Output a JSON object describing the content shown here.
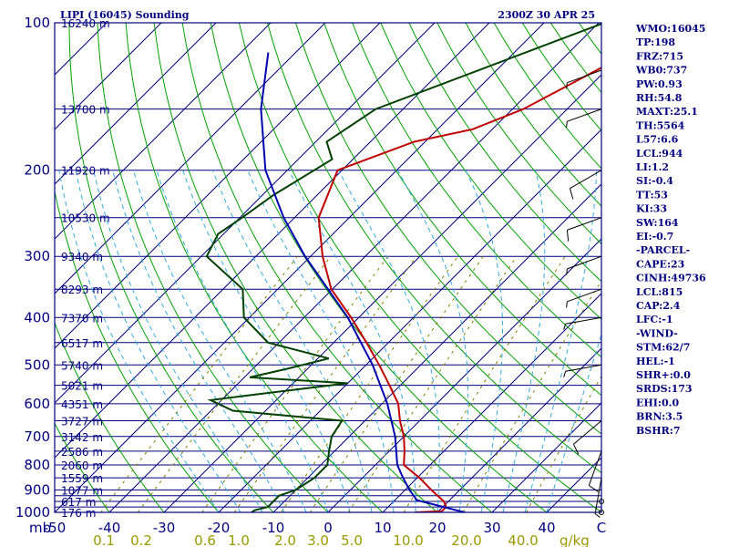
{
  "header": {
    "title": "LIPI (16045) Sounding",
    "datetime": "2300Z 30 APR 25"
  },
  "indices": [
    "WMO:16045",
    "TP:198",
    "FRZ:715",
    "WB0:737",
    "PW:0.93",
    "RH:54.8",
    "MAXT:25.1",
    "TH:5564",
    "L57:6.6",
    "LCL:944",
    "LI:1.2",
    "SI:-0.4",
    "TT:53",
    "KI:33",
    "SW:164",
    "EI:-0.7",
    "-PARCEL-",
    "CAPE:23",
    "CINH:49736",
    "LCL:815",
    "CAP:2.4",
    "LFC:-1",
    "-WIND-",
    "STM:62/7",
    "HEL:-1",
    "SHR+:0.0",
    "SRDS:173",
    "EHI:0.0",
    "BRN:3.5",
    "BSHR:7"
  ],
  "colors": {
    "frame": "#000080",
    "isobar": "#000080",
    "isotherm": "#000080",
    "dry_adiabat": "#00a000",
    "moist_adiabat": "#33aadd",
    "mixing_ratio": "#808000",
    "temperature": "#c00000",
    "dewpoint": "#004000",
    "parcel": "#0000b0",
    "wind_barb": "#000000"
  },
  "chart_data": {
    "type": "line",
    "diagram": "skew-T log-p",
    "pressure_axis": {
      "unit_label": "mb",
      "range": [
        100,
        1000
      ],
      "scale": "log",
      "levels": [
        100,
        150,
        200,
        250,
        300,
        350,
        400,
        450,
        500,
        550,
        600,
        650,
        700,
        750,
        800,
        850,
        900,
        925,
        950,
        975,
        1000
      ],
      "tick_labels": [
        "100",
        "200",
        "300",
        "400",
        "500",
        "600",
        "700",
        "800",
        "900",
        "1000"
      ]
    },
    "temperature_axis": {
      "unit_label": "C",
      "range": [
        -50,
        50
      ],
      "tick_labels": [
        "-50",
        "-40",
        "-30",
        "-20",
        "-10",
        "0",
        "10",
        "20",
        "30",
        "40",
        "C"
      ]
    },
    "mixing_ratio_axis": {
      "unit_label": "g/kg",
      "values": [
        0.1,
        0.2,
        0.6,
        1.0,
        2.0,
        3.0,
        5.0,
        10.0,
        20.0,
        40.0
      ],
      "tick_labels": [
        "0.1",
        "0.2",
        "0.6",
        "1.0",
        "2.0",
        "3.0",
        "5.0",
        "10.0",
        "20.0",
        "40.0"
      ]
    },
    "height_labels": [
      {
        "p": 100,
        "label": "16240 m"
      },
      {
        "p": 150,
        "label": "13700 m"
      },
      {
        "p": 200,
        "label": "11920 m"
      },
      {
        "p": 250,
        "label": "10530 m"
      },
      {
        "p": 300,
        "label": "9340 m"
      },
      {
        "p": 350,
        "label": "8293 m"
      },
      {
        "p": 400,
        "label": "7370 m"
      },
      {
        "p": 450,
        "label": "6517 m"
      },
      {
        "p": 500,
        "label": "5740 m"
      },
      {
        "p": 550,
        "label": "5021 m"
      },
      {
        "p": 600,
        "label": "4351 m"
      },
      {
        "p": 650,
        "label": "3727 m"
      },
      {
        "p": 700,
        "label": "3142 m"
      },
      {
        "p": 750,
        "label": "2586 m"
      },
      {
        "p": 800,
        "label": "2060 m"
      },
      {
        "p": 850,
        "label": "1559 m"
      },
      {
        "p": 900,
        "label": "1077 m"
      },
      {
        "p": 950,
        "label": "617 m"
      },
      {
        "p": 1000,
        "label": "176 m"
      }
    ],
    "series": [
      {
        "key": "temperature",
        "points": [
          [
            1000,
            16
          ],
          [
            995,
            20.6
          ],
          [
            975,
            20.6
          ],
          [
            950,
            19.2
          ],
          [
            925,
            17.0
          ],
          [
            900,
            14.8
          ],
          [
            850,
            10.4
          ],
          [
            800,
            5.2
          ],
          [
            750,
            2.8
          ],
          [
            700,
            0.0
          ],
          [
            650,
            -3.6
          ],
          [
            600,
            -7.0
          ],
          [
            550,
            -12.0
          ],
          [
            500,
            -17.6
          ],
          [
            450,
            -24.0
          ],
          [
            400,
            -31.4
          ],
          [
            350,
            -40.2
          ],
          [
            300,
            -47.8
          ],
          [
            250,
            -55.6
          ],
          [
            200,
            -60.8
          ],
          [
            175,
            -52.0
          ],
          [
            165,
            -43.6
          ],
          [
            150,
            -38.0
          ],
          [
            100,
            -24.0
          ]
        ]
      },
      {
        "key": "dewpoint",
        "points": [
          [
            1000,
            -14
          ],
          [
            990,
            -13.8
          ],
          [
            975,
            -12.0
          ],
          [
            950,
            -12.0
          ],
          [
            925,
            -12.0
          ],
          [
            900,
            -10.0
          ],
          [
            850,
            -8.8
          ],
          [
            800,
            -8.8
          ],
          [
            750,
            -11.0
          ],
          [
            700,
            -13.2
          ],
          [
            650,
            -14.2
          ],
          [
            620,
            -36.0
          ],
          [
            590,
            -42.0
          ],
          [
            575,
            -35.0
          ],
          [
            545,
            -20.0
          ],
          [
            530,
            -39.0
          ],
          [
            510,
            -34.0
          ],
          [
            485,
            -28.0
          ],
          [
            450,
            -42.0
          ],
          [
            400,
            -51.0
          ],
          [
            350,
            -56.4
          ],
          [
            300,
            -69.0
          ],
          [
            270,
            -71.0
          ],
          [
            250,
            -69.6
          ],
          [
            225,
            -68.0
          ],
          [
            190,
            -63.8
          ],
          [
            175,
            -68.0
          ],
          [
            150,
            -65.0
          ],
          [
            100,
            -39.0
          ]
        ]
      },
      {
        "key": "parcel",
        "points": [
          [
            1000,
            25.0
          ],
          [
            944,
            14.0
          ],
          [
            900,
            10.8
          ],
          [
            850,
            7.4
          ],
          [
            800,
            4.0
          ],
          [
            700,
            -1.6
          ],
          [
            600,
            -9.0
          ],
          [
            500,
            -18.8
          ],
          [
            400,
            -32.0
          ],
          [
            300,
            -51.0
          ],
          [
            250,
            -62.0
          ],
          [
            200,
            -74.0
          ],
          [
            150,
            -86.0
          ],
          [
            115,
            -95.0
          ]
        ]
      }
    ],
    "wind_barbs": [
      {
        "p": 1000,
        "dir": 90,
        "spd": 0
      },
      {
        "p": 950,
        "dir": 90,
        "spd": 0
      },
      {
        "p": 850,
        "dir": 190,
        "spd": 5
      },
      {
        "p": 750,
        "dir": 200,
        "spd": 10
      },
      {
        "p": 650,
        "dir": 230,
        "spd": 10
      },
      {
        "p": 500,
        "dir": 260,
        "spd": 5
      },
      {
        "p": 400,
        "dir": 260,
        "spd": 5
      },
      {
        "p": 350,
        "dir": 250,
        "spd": 5
      },
      {
        "p": 300,
        "dir": 250,
        "spd": 5
      },
      {
        "p": 250,
        "dir": 250,
        "spd": 10
      },
      {
        "p": 200,
        "dir": 240,
        "spd": 10
      },
      {
        "p": 150,
        "dir": 250,
        "spd": 5
      },
      {
        "p": 125,
        "dir": 250,
        "spd": 5
      }
    ],
    "grid": true,
    "legend": "none"
  }
}
